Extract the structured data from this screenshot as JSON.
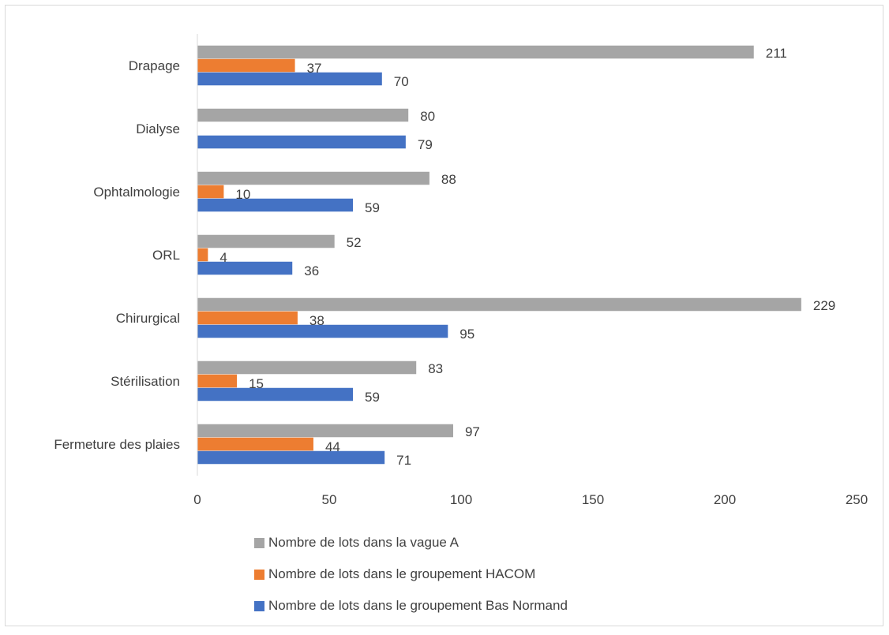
{
  "chart_data": {
    "type": "bar",
    "orientation": "horizontal",
    "categories": [
      "Drapage",
      "Dialyse",
      "Ophtalmologie",
      "ORL",
      "Chirurgical",
      "Stérilisation",
      "Fermeture des plaies"
    ],
    "series": [
      {
        "name": "Nombre de lots dans la vague A",
        "color": "#a5a5a5",
        "values": [
          211,
          80,
          88,
          52,
          229,
          83,
          97
        ]
      },
      {
        "name": "Nombre de lots dans le groupement HACOM",
        "color": "#ed7d31",
        "values": [
          37,
          null,
          10,
          4,
          38,
          15,
          44
        ]
      },
      {
        "name": "Nombre de lots dans le groupement Bas Normand",
        "color": "#4472c4",
        "values": [
          70,
          79,
          59,
          36,
          95,
          59,
          71
        ]
      }
    ],
    "xlim": [
      0,
      250
    ],
    "xticks": [
      "0",
      "50",
      "100",
      "150",
      "200",
      "250"
    ],
    "grid": false,
    "legend_position": "bottom",
    "data_labels": true
  }
}
